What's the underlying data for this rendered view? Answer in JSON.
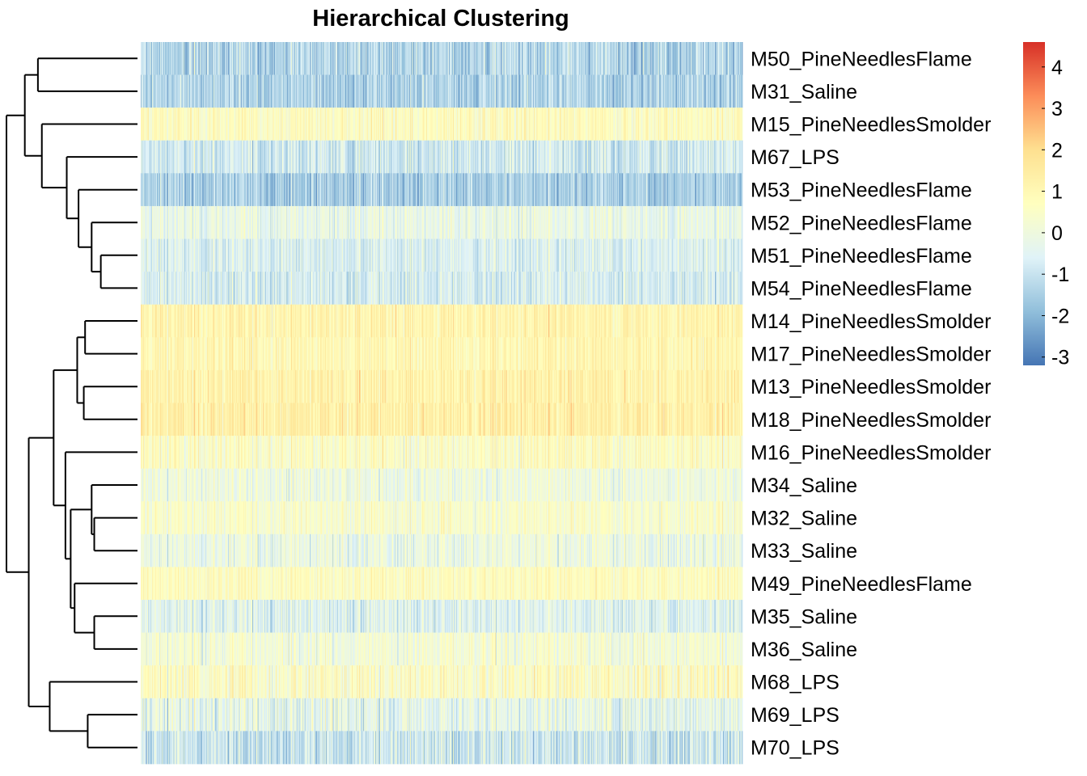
{
  "chart_data": {
    "type": "heatmap",
    "title": "Hierarchical Clustering",
    "rows": [
      "M50_PineNeedlesFlame",
      "M31_Saline",
      "M15_PineNeedlesSmolder",
      "M67_LPS",
      "M53_PineNeedlesFlame",
      "M52_PineNeedlesFlame",
      "M51_PineNeedlesFlame",
      "M54_PineNeedlesFlame",
      "M14_PineNeedlesSmolder",
      "M17_PineNeedlesSmolder",
      "M13_PineNeedlesSmolder",
      "M18_PineNeedlesSmolder",
      "M16_PineNeedlesSmolder",
      "M34_Saline",
      "M32_Saline",
      "M33_Saline",
      "M49_PineNeedlesFlame",
      "M35_Saline",
      "M36_Saline",
      "M68_LPS",
      "M69_LPS",
      "M70_LPS"
    ],
    "row_mean": [
      -1.3,
      -1.4,
      0.7,
      -0.8,
      -1.5,
      -0.2,
      -0.6,
      -0.7,
      1.1,
      1.0,
      1.2,
      1.3,
      0.6,
      0.0,
      0.4,
      -0.1,
      0.7,
      -0.5,
      0.2,
      0.6,
      -0.3,
      -0.9
    ],
    "row_spread": [
      1.4,
      1.2,
      0.8,
      1.2,
      1.1,
      0.8,
      0.8,
      1.0,
      0.7,
      0.7,
      0.8,
      0.8,
      1.0,
      0.9,
      0.8,
      1.0,
      0.6,
      1.0,
      1.0,
      1.3,
      1.3,
      1.4
    ],
    "n_columns": 900,
    "legend": {
      "min": -3.2,
      "max": 4.6,
      "ticks": [
        "4",
        "3",
        "2",
        "1",
        "0",
        "-1",
        "-2",
        "-3"
      ],
      "tick_values": [
        4,
        3,
        2,
        1,
        0,
        -1,
        -2,
        -3
      ],
      "colors": [
        "#4575B4",
        "#91BFDB",
        "#E0F3F8",
        "#FFFFBF",
        "#FEE090",
        "#FC8D59",
        "#D73027"
      ]
    },
    "dendrogram_side": "left",
    "dendrogram": [
      {
        "a": 0,
        "b": 1,
        "h": 0.76
      },
      {
        "a": 6,
        "b": 7,
        "h": 0.28
      },
      {
        "a": 5,
        "b": "n1",
        "h": 0.35
      },
      {
        "a": 4,
        "b": "n2",
        "h": 0.45
      },
      {
        "a": 3,
        "b": "n3",
        "h": 0.54
      },
      {
        "a": 2,
        "b": "n4",
        "h": 0.73
      },
      {
        "a": "n0",
        "b": "n5",
        "h": 0.86
      },
      {
        "a": 8,
        "b": 9,
        "h": 0.4
      },
      {
        "a": 10,
        "b": 11,
        "h": 0.41
      },
      {
        "a": "n7",
        "b": "n8",
        "h": 0.46
      },
      {
        "a": 14,
        "b": 15,
        "h": 0.33
      },
      {
        "a": 13,
        "b": "n10",
        "h": 0.35
      },
      {
        "a": 17,
        "b": 18,
        "h": 0.33
      },
      {
        "a": 16,
        "b": "n12",
        "h": 0.48
      },
      {
        "a": "n11",
        "b": "n13",
        "h": 0.51
      },
      {
        "a": 12,
        "b": "n14",
        "h": 0.55
      },
      {
        "a": "n9",
        "b": "n15",
        "h": 0.64
      },
      {
        "a": 20,
        "b": 21,
        "h": 0.38
      },
      {
        "a": 19,
        "b": "n17",
        "h": 0.67
      },
      {
        "a": "n16",
        "b": "n18",
        "h": 0.83
      },
      {
        "a": "n6",
        "b": "n19",
        "h": 1.0
      }
    ]
  }
}
